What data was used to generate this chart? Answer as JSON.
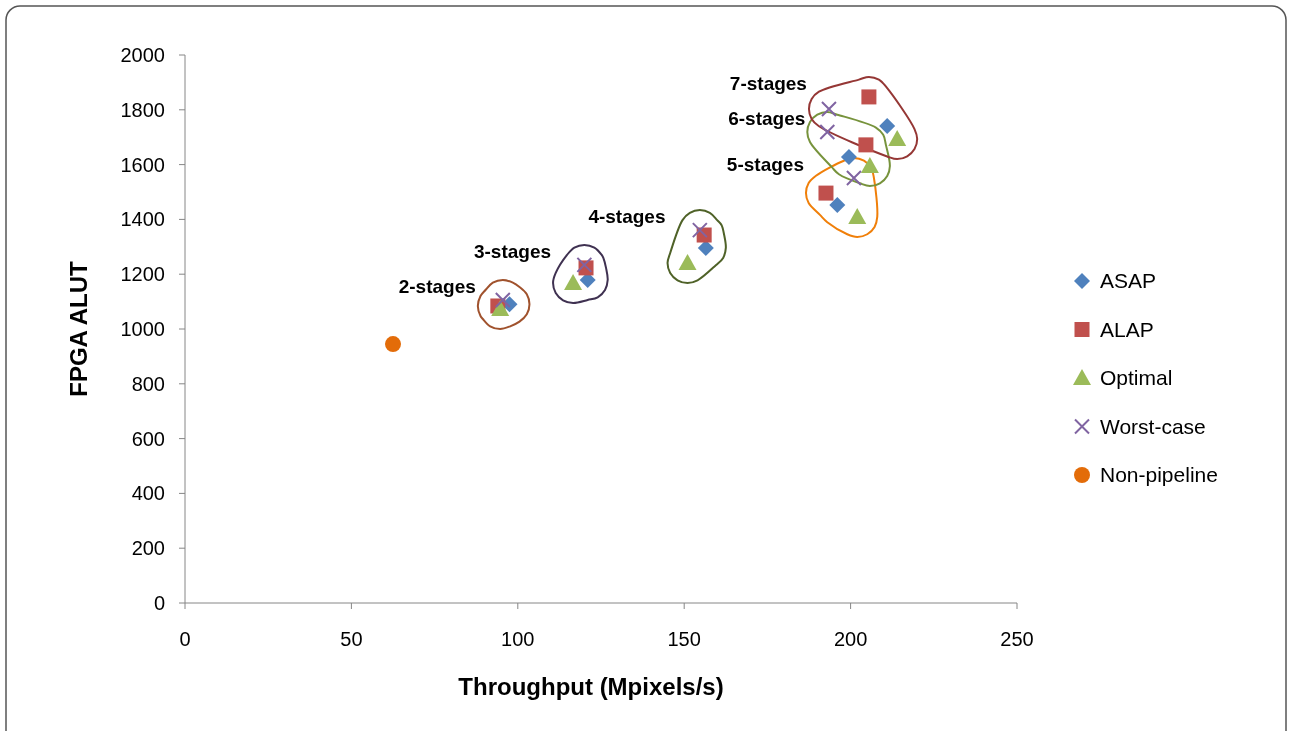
{
  "chart_data": {
    "type": "scatter",
    "xlabel": "Throughput (Mpixels/s)",
    "ylabel": "FPGA ALUT",
    "xlim": [
      0,
      250
    ],
    "xticks": [
      0,
      50,
      100,
      150,
      200,
      250
    ],
    "ylim": [
      0,
      2000
    ],
    "yticks": [
      0,
      200,
      400,
      600,
      800,
      1000,
      1200,
      1400,
      1600,
      1800,
      2000
    ],
    "grid": false,
    "legend": "right",
    "series": [
      {
        "name": "ASAP",
        "color": "#4f81bd",
        "marker": "diamond",
        "x": [
          97.5,
          121,
          156.5,
          196,
          199.5,
          211
        ],
        "values": [
          1090,
          1179,
          1296,
          1453,
          1628,
          1741
        ]
      },
      {
        "name": "ALAP",
        "color": "#c0504d",
        "marker": "square",
        "x": [
          94,
          120.5,
          156,
          192.6,
          204.6,
          205.5
        ],
        "values": [
          1084,
          1223,
          1343,
          1496,
          1672,
          1847
        ]
      },
      {
        "name": "Optimal",
        "color": "#9bbb59",
        "marker": "triangle",
        "x": [
          94.7,
          116.6,
          151,
          202,
          205.8,
          214
        ],
        "values": [
          1073,
          1168,
          1241,
          1409,
          1595,
          1693
        ]
      },
      {
        "name": "Worst-case",
        "color": "#8064a2",
        "marker": "cross",
        "x": [
          95.5,
          120,
          154.7,
          201,
          193,
          193.5
        ],
        "values": [
          1106,
          1234,
          1361,
          1551,
          1719,
          1803
        ]
      },
      {
        "name": "Non-pipeline",
        "color": "#e36c09",
        "marker": "circle",
        "x": [
          62.5
        ],
        "values": [
          945
        ]
      }
    ],
    "annotations": [
      "2-stages",
      "3-stages",
      "4-stages",
      "5-stages",
      "6-stages",
      "7-stages"
    ]
  }
}
